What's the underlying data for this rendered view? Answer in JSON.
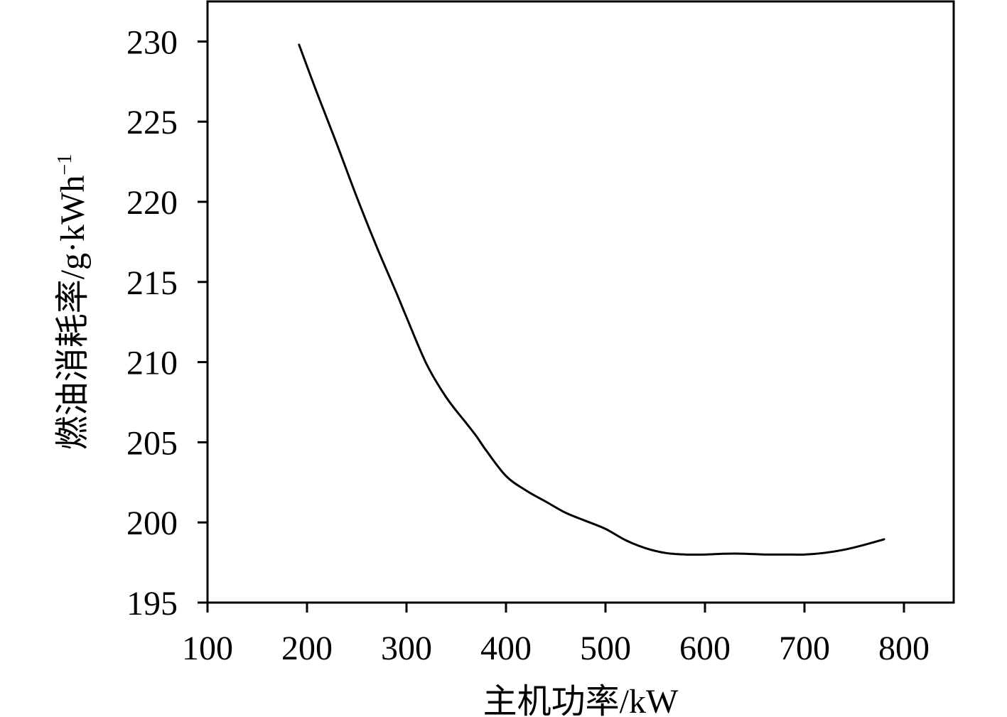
{
  "chart_data": {
    "type": "line",
    "title": "",
    "xlabel": "主机功率/kW",
    "ylabel_main": "燃油消耗率/g·kWh",
    "ylabel_superscript": "−1",
    "xlim": [
      100,
      850
    ],
    "ylim": [
      195,
      232.5
    ],
    "x_ticks": [
      100,
      200,
      300,
      400,
      500,
      600,
      700,
      800
    ],
    "y_ticks": [
      195,
      200,
      205,
      210,
      215,
      220,
      225,
      230
    ],
    "grid": false,
    "line_color": "#000000",
    "series": [
      {
        "x": [
          192,
          210,
          230,
          250,
          270,
          290,
          300,
          320,
          340,
          360,
          370,
          380,
          400,
          420,
          440,
          460,
          480,
          500,
          520,
          540,
          560,
          580,
          600,
          620,
          640,
          660,
          680,
          700,
          720,
          740,
          760,
          780
        ],
        "y": [
          229.8,
          226.8,
          223.6,
          220.3,
          217.2,
          214.3,
          212.8,
          209.9,
          207.8,
          206.2,
          205.4,
          204.5,
          202.9,
          202.0,
          201.3,
          200.6,
          200.1,
          199.6,
          198.9,
          198.4,
          198.1,
          198.0,
          198.0,
          198.05,
          198.05,
          198.0,
          198.0,
          198.0,
          198.1,
          198.3,
          198.6,
          198.95
        ]
      }
    ]
  }
}
